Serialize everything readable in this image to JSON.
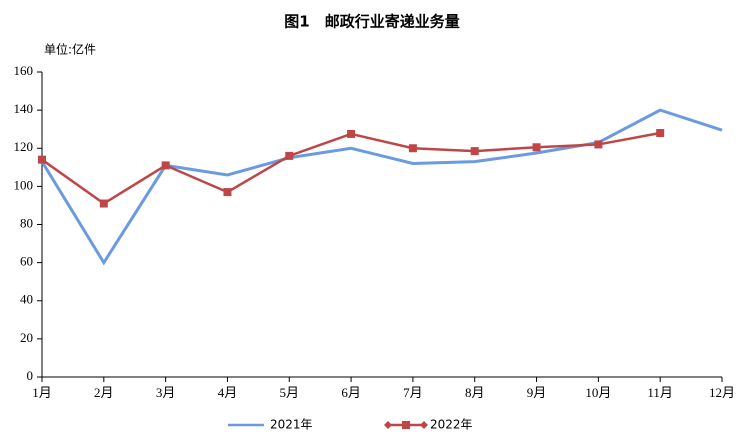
{
  "chart_data": {
    "type": "line",
    "title": "图1　邮政行业寄递业务量",
    "y_label": "单位:亿件",
    "categories": [
      "1月",
      "2月",
      "3月",
      "4月",
      "5月",
      "6月",
      "7月",
      "8月",
      "9月",
      "10月",
      "11月",
      "12月"
    ],
    "series": [
      {
        "name": "2021年",
        "color": "#6a9be0",
        "marker": "none",
        "values": [
          113,
          60,
          111,
          106,
          115,
          120,
          112,
          113,
          117.5,
          123,
          140,
          129.5
        ]
      },
      {
        "name": "2022年",
        "color": "#be4646",
        "marker": "square",
        "values": [
          114,
          91,
          111,
          97,
          116,
          127.5,
          120,
          118.5,
          120.5,
          122,
          128,
          null
        ]
      }
    ],
    "ylim": [
      0,
      160
    ],
    "yticks": [
      0,
      20,
      40,
      60,
      80,
      100,
      120,
      140,
      160
    ],
    "grid": false,
    "legend": "bottom"
  }
}
